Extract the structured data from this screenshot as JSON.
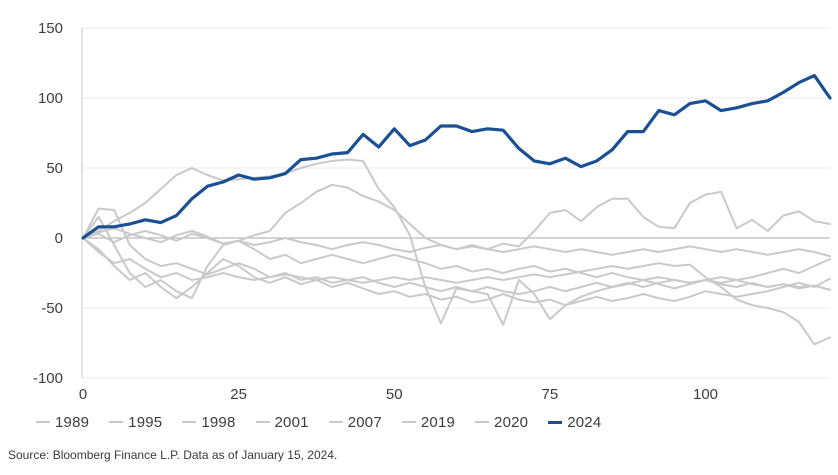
{
  "source_note": "Source: Bloomberg Finance L.P. Data as of January 15, 2024.",
  "chart_data": {
    "type": "line",
    "title": "",
    "xlabel": "",
    "ylabel": "",
    "xlim": [
      0,
      120
    ],
    "ylim": [
      -100,
      150
    ],
    "x_ticks": [
      0,
      25,
      50,
      75,
      100
    ],
    "y_ticks": [
      150,
      100,
      50,
      0,
      -50,
      -100
    ],
    "x_start": 0,
    "x_step": 2.5,
    "grid": "horizontal",
    "legend_position": "bottom",
    "colors": {
      "grid": "#ebebeb",
      "zero_line": "#a9a9a9",
      "axis_line": "#c6c6c6",
      "tick_text": "#3d3d3d",
      "gray_series": "#c9c9c9",
      "accent_blue": "#1b4f94"
    },
    "series": [
      {
        "name": "1989",
        "color": "#c9c9c9",
        "stroke_width": 2,
        "values": [
          0,
          21,
          20,
          -5,
          -15,
          -20,
          -18,
          -22,
          -26,
          -22,
          -18,
          -22,
          -28,
          -25,
          -30,
          -28,
          -32,
          -30,
          -28,
          -32,
          -35,
          -32,
          -35,
          -38,
          -35,
          -38,
          -35,
          -38,
          -40,
          -38,
          -35,
          -38,
          -35,
          -32,
          -35,
          -32,
          -35,
          -32,
          -30,
          -32,
          -30,
          -28,
          -30,
          -28,
          -25,
          -22,
          -25,
          -20,
          -15
        ]
      },
      {
        "name": "1995",
        "color": "#c9c9c9",
        "stroke_width": 2,
        "values": [
          0,
          4,
          7,
          3,
          0,
          -3,
          2,
          5,
          1,
          -4,
          -2,
          2,
          5,
          18,
          25,
          33,
          38,
          36,
          30,
          26,
          20,
          10,
          0,
          -5,
          -8,
          -5,
          -8,
          -4,
          -6,
          5,
          18,
          20,
          12,
          22,
          28,
          28,
          15,
          8,
          7,
          25,
          31,
          33,
          7,
          13,
          5,
          16,
          19,
          12,
          10
        ]
      },
      {
        "name": "1998",
        "color": "#c9c9c9",
        "stroke_width": 2,
        "values": [
          0,
          5,
          12,
          18,
          25,
          35,
          45,
          50,
          45,
          41,
          42,
          43,
          44,
          46,
          50,
          53,
          55,
          56,
          55,
          35,
          22,
          2,
          -35,
          -61,
          -36,
          -38,
          -40,
          -62,
          -30,
          -40,
          -58,
          -48,
          -42,
          -38,
          -35,
          -33,
          -30,
          -33,
          -36,
          -33,
          -30,
          -33,
          -35,
          -32,
          -35,
          -33,
          -36,
          -34,
          -37
        ]
      },
      {
        "name": "2001",
        "color": "#c9c9c9",
        "stroke_width": 2,
        "values": [
          0,
          -8,
          -20,
          -30,
          -25,
          -35,
          -43,
          -35,
          -25,
          -15,
          -20,
          -28,
          -32,
          -28,
          -33,
          -30,
          -35,
          -32,
          -36,
          -40,
          -38,
          -42,
          -40,
          -44,
          -42,
          -46,
          -44,
          -40,
          -44,
          -46,
          -44,
          -48,
          -45,
          -42,
          -45,
          -43,
          -40,
          -43,
          -45,
          -42,
          -38,
          -40,
          -42,
          -40,
          -38,
          -35,
          -32,
          -35,
          -29
        ]
      },
      {
        "name": "2007",
        "color": "#c9c9c9",
        "stroke_width": 2,
        "values": [
          0,
          -10,
          -18,
          -15,
          -22,
          -28,
          -25,
          -30,
          -28,
          -25,
          -28,
          -30,
          -28,
          -26,
          -28,
          -30,
          -28,
          -30,
          -32,
          -30,
          -28,
          -30,
          -28,
          -30,
          -32,
          -30,
          -28,
          -30,
          -28,
          -26,
          -28,
          -26,
          -24,
          -22,
          -20,
          -22,
          -20,
          -18,
          -20,
          -19,
          -28,
          -35,
          -44,
          -48,
          -50,
          -53,
          -60,
          -76,
          -71
        ]
      },
      {
        "name": "2019",
        "color": "#c9c9c9",
        "stroke_width": 2,
        "values": [
          0,
          3,
          -3,
          2,
          5,
          2,
          -2,
          3,
          0,
          -4,
          -2,
          -5,
          -3,
          0,
          -3,
          -5,
          -8,
          -5,
          -3,
          -5,
          -8,
          -10,
          -7,
          -5,
          -8,
          -6,
          -8,
          -10,
          -8,
          -6,
          -8,
          -10,
          -8,
          -10,
          -12,
          -10,
          -8,
          -10,
          -8,
          -6,
          -8,
          -10,
          -8,
          -10,
          -12,
          -10,
          -8,
          -10,
          -13
        ]
      },
      {
        "name": "2020",
        "color": "#c9c9c9",
        "stroke_width": 2,
        "values": [
          0,
          15,
          -5,
          -25,
          -35,
          -30,
          -38,
          -43,
          -20,
          -5,
          -2,
          -8,
          -15,
          -12,
          -18,
          -15,
          -12,
          -15,
          -18,
          -15,
          -12,
          -15,
          -18,
          -22,
          -20,
          -24,
          -22,
          -25,
          -22,
          -20,
          -24,
          -22,
          -25,
          -28,
          -25,
          -28,
          -30,
          -28,
          -30,
          -32,
          -30,
          -32,
          -30,
          -33,
          -35,
          -33,
          -35,
          -34,
          -37
        ]
      },
      {
        "name": "2024",
        "color": "#1b4f94",
        "stroke_width": 3.2,
        "values": [
          0,
          8,
          8,
          10,
          13,
          11,
          16,
          28,
          37,
          40,
          45,
          42,
          43,
          46,
          56,
          57,
          60,
          61,
          74,
          65,
          78,
          66,
          70,
          80,
          80,
          76,
          78,
          77,
          64,
          55,
          53,
          57,
          51,
          55,
          63,
          76,
          76,
          91,
          88,
          96,
          98,
          91,
          93,
          96,
          98,
          104,
          111,
          116,
          100
        ]
      }
    ]
  }
}
